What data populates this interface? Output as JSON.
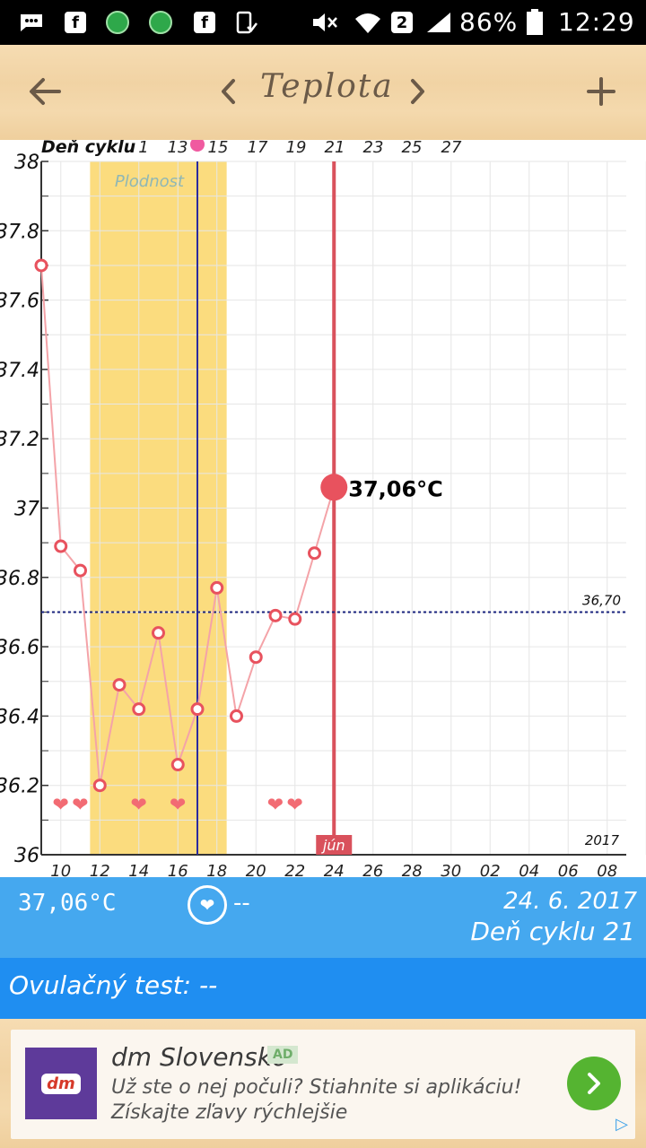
{
  "status_bar": {
    "battery": "86%",
    "time": "12:29",
    "sim_slot": "2",
    "icons": [
      "messenger-icon",
      "facebook-icon",
      "green-app-icon",
      "green-app-icon",
      "facebook-icon",
      "phone-app-icon",
      "mute-icon",
      "wifi-icon",
      "signal-icon",
      "battery-icon"
    ]
  },
  "app_bar": {
    "back_icon": "arrow-left-icon",
    "prev_icon": "chevron-left-icon",
    "title": "Teplota",
    "next_icon": "chevron-right-icon",
    "add_icon": "plus-icon"
  },
  "chart_data": {
    "type": "line",
    "cycle_label": "Deň cyklu",
    "cycle_ticks": [
      "1",
      "13",
      "15",
      "17",
      "19",
      "21",
      "23",
      "25",
      "27"
    ],
    "date_ticks": [
      "10",
      "12",
      "14",
      "16",
      "18",
      "20",
      "22",
      "24",
      "26",
      "28",
      "30",
      "02",
      "04",
      "06",
      "08"
    ],
    "y_ticks": [
      "36",
      "36.2",
      "36.4",
      "36.6",
      "36.8",
      "37",
      "37.2",
      "37.4",
      "37.6",
      "37.8",
      "38"
    ],
    "ylim": [
      36,
      38
    ],
    "fertility_label": "Plodnost",
    "fertility_window_days": [
      11.5,
      18.5
    ],
    "ovulation_day": 17,
    "selected_day": 24,
    "selected_value_label": "37,06°C",
    "selected_value": 37.06,
    "coverline_value": 36.7,
    "coverline_label": "36,70",
    "month_label": "jún",
    "year_label": "2017",
    "series": [
      {
        "x": [
          9,
          10,
          11,
          12,
          13,
          14,
          15,
          16,
          17,
          18,
          19,
          20,
          21,
          22,
          23
        ],
        "values": [
          37.7,
          36.89,
          36.82,
          36.2,
          36.49,
          36.42,
          36.64,
          36.26,
          36.42,
          36.77,
          36.4,
          36.57,
          36.69,
          36.68,
          36.87
        ]
      }
    ],
    "selected_point": {
      "x": 24,
      "value": 37.06
    },
    "heart_days": [
      10,
      11,
      14,
      16,
      21,
      22
    ],
    "grid": true,
    "colors": {
      "fertility": "#fbdc7e",
      "line": "#f4a3a8",
      "point": "#e8525e",
      "ovulation_line": "#2a2aa0",
      "selected_line": "#d9515c",
      "coverline": "#1a237e"
    }
  },
  "summary_panel": {
    "temperature": "37,06°C",
    "heart_icon": "heart-icon",
    "intercourse_value": "--",
    "date": "24. 6. 2017",
    "cycle_day": "Deň cyklu 21"
  },
  "ovulation": {
    "label": "Ovulačný test: --"
  },
  "ad": {
    "logo_text": "dm",
    "title": "dm Slovensko",
    "badge": "AD",
    "line1": "Už ste o nej počuli? Stiahnite si aplikáciu!",
    "line2": "Získajte zľavy rýchlejšie",
    "go_icon": "chevron-right-icon",
    "info_icon": "adchoices-icon"
  }
}
